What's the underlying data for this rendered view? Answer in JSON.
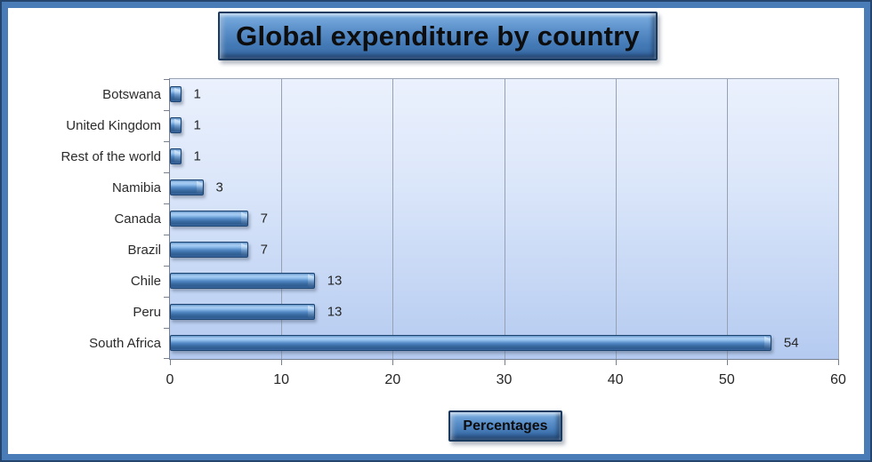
{
  "chart_data": {
    "type": "bar",
    "orientation": "horizontal",
    "title": "Global expenditure by country",
    "xlabel": "Percentages",
    "ylabel": "",
    "categories": [
      "Botswana",
      "United Kingdom",
      "Rest of the world",
      "Namibia",
      "Canada",
      "Brazil",
      "Chile",
      "Peru",
      "South Africa"
    ],
    "values": [
      1,
      1,
      1,
      3,
      7,
      7,
      13,
      13,
      54
    ],
    "xlim": [
      0,
      60
    ],
    "xticks": [
      0,
      10,
      20,
      30,
      40,
      50,
      60
    ],
    "grid": true,
    "legend": false
  },
  "colors": {
    "frame_outer": "#24466e",
    "frame_band": "#4a7db8",
    "box_face_top": "#7db0e2",
    "box_face_bottom": "#3a6da9",
    "box_border": "#1b3a5f",
    "bar_highlight": "#a9cef3",
    "bar_main": "#5187c3",
    "bar_dark": "#2e5c91",
    "bar_border": "#1d4470",
    "plot_top": "#ebf1fd",
    "plot_bottom": "#b4caf0",
    "gridline": "#98a1b3",
    "axis_line": "#76808f",
    "text": "#262626"
  }
}
